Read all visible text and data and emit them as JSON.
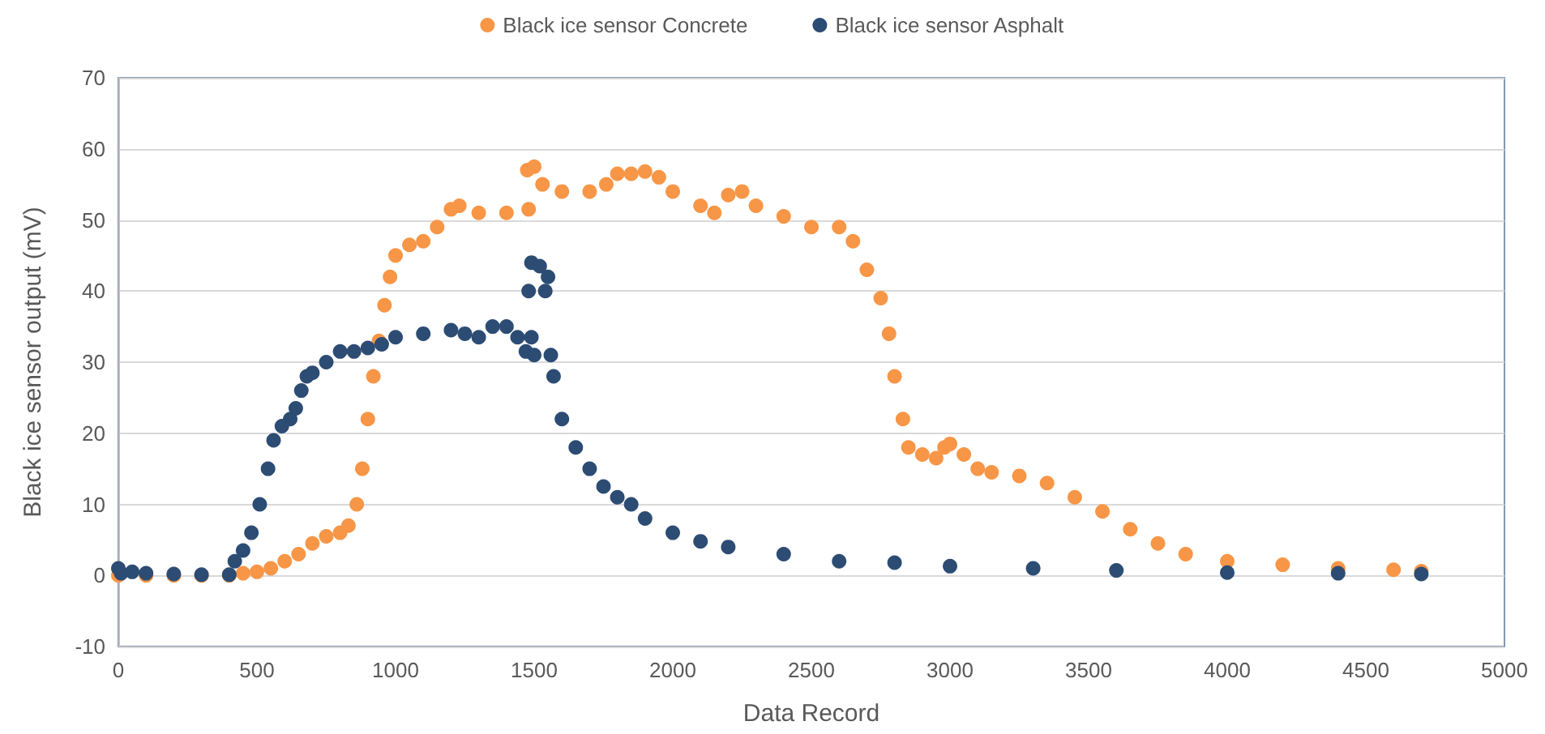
{
  "chart_data": {
    "type": "scatter",
    "xlabel": "Data Record",
    "ylabel": "Black ice sensor output (mV)",
    "xlim": [
      0,
      5000
    ],
    "xticks": [
      0,
      500,
      1000,
      1500,
      2000,
      2500,
      3000,
      3500,
      4000,
      4500,
      5000
    ],
    "ylim": [
      -10,
      70
    ],
    "yticks": [
      -10,
      0,
      10,
      20,
      30,
      40,
      50,
      60,
      70
    ],
    "grid": "y",
    "legend": "top",
    "marker": "circle",
    "series": [
      {
        "name": "Black ice sensor Concrete",
        "color": "#f79646",
        "x": [
          0,
          100,
          200,
          300,
          400,
          450,
          500,
          550,
          600,
          650,
          700,
          750,
          800,
          830,
          860,
          880,
          900,
          920,
          940,
          960,
          980,
          1000,
          1050,
          1100,
          1150,
          1200,
          1230,
          1300,
          1400,
          1480,
          1475,
          1500,
          1530,
          1600,
          1700,
          1760,
          1800,
          1850,
          1900,
          1950,
          2000,
          2100,
          2150,
          2200,
          2250,
          2300,
          2400,
          2500,
          2600,
          2650,
          2700,
          2750,
          2780,
          2800,
          2830,
          2850,
          2900,
          2950,
          2980,
          3000,
          3050,
          3100,
          3150,
          3250,
          3350,
          3450,
          3550,
          3650,
          3750,
          3850,
          4000,
          4200,
          4400,
          4600,
          4700
        ],
        "values": [
          0,
          0,
          0,
          0,
          0,
          0.3,
          0.5,
          1,
          2,
          3,
          4.5,
          5.5,
          6,
          7,
          10,
          15,
          22,
          28,
          33,
          38,
          42,
          45,
          46.5,
          47,
          49,
          51.5,
          52,
          51,
          51,
          51.5,
          57,
          57.5,
          55,
          54,
          54,
          55,
          56.5,
          56.5,
          56.8,
          56,
          54,
          52,
          51,
          53.5,
          54,
          52,
          50.5,
          49,
          49,
          47,
          43,
          39,
          34,
          28,
          22,
          18,
          17,
          16.5,
          18,
          18.5,
          17,
          15,
          14.5,
          14,
          13,
          11,
          9,
          6.5,
          4.5,
          3,
          2,
          1.5,
          1,
          0.8,
          0.6
        ]
      },
      {
        "name": "Black ice sensor Asphalt",
        "color": "#2c4c74",
        "x": [
          0,
          10,
          50,
          100,
          200,
          300,
          400,
          420,
          450,
          480,
          510,
          540,
          560,
          590,
          620,
          640,
          660,
          680,
          700,
          750,
          800,
          850,
          900,
          950,
          1000,
          1100,
          1200,
          1250,
          1300,
          1350,
          1400,
          1440,
          1470,
          1490,
          1500,
          1480,
          1490,
          1520,
          1550,
          1540,
          1560,
          1570,
          1600,
          1650,
          1700,
          1750,
          1800,
          1850,
          1900,
          2000,
          2100,
          2200,
          2400,
          2600,
          2800,
          3000,
          3300,
          3600,
          4000,
          4400,
          4700
        ],
        "values": [
          1,
          0.3,
          0.5,
          0.3,
          0.2,
          0.1,
          0.1,
          2,
          3.5,
          6,
          10,
          15,
          19,
          21,
          22,
          23.5,
          26,
          28,
          28.5,
          30,
          31.5,
          31.5,
          32,
          32.5,
          33.5,
          34,
          34.5,
          34,
          33.5,
          35,
          35,
          33.5,
          31.5,
          33.5,
          31,
          40,
          44,
          43.5,
          42,
          40,
          31,
          28,
          22,
          18,
          15,
          12.5,
          11,
          10,
          8,
          6,
          4.8,
          4,
          3,
          2,
          1.8,
          1.3,
          1,
          0.7,
          0.4,
          0.3,
          0.2
        ]
      }
    ]
  }
}
